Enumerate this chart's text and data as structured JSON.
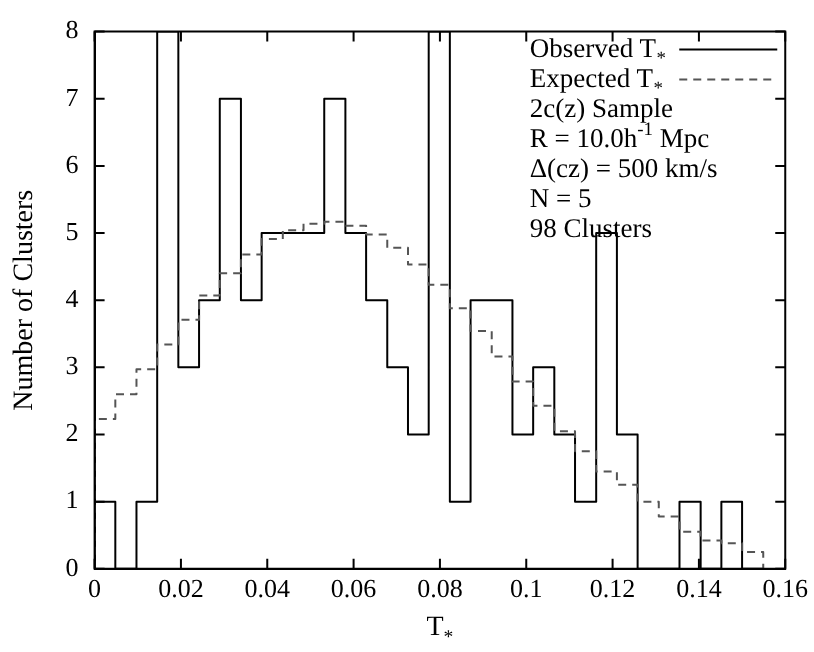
{
  "chart_data": {
    "type": "histogram",
    "xlabel": "T$_{*}$",
    "ylabel": "Number of Clusters",
    "bins": [
      0,
      0.0048,
      0.0097,
      0.0145,
      0.0194,
      0.0242,
      0.029,
      0.0339,
      0.0387,
      0.0436,
      0.0484,
      0.0532,
      0.0581,
      0.0629,
      0.0678,
      0.0726,
      0.0774,
      0.0823,
      0.0871,
      0.092,
      0.0968,
      0.1016,
      0.1065,
      0.1113,
      0.1162,
      0.121,
      0.1258,
      0.1307,
      0.1355,
      0.1404,
      0.1452,
      0.15,
      0.1549
    ],
    "series": [
      {
        "name": "Observed T$_{*}$",
        "color": "#000000",
        "line_style": "solid",
        "values": [
          1,
          0,
          1,
          8,
          3,
          4,
          7,
          4,
          5,
          5,
          5,
          7,
          5,
          4,
          3,
          2,
          8,
          1,
          4,
          4,
          2,
          3,
          2,
          1,
          5,
          2,
          0,
          0,
          1,
          0,
          1,
          0
        ]
      },
      {
        "name": "Expected T$_{*}$",
        "color": "#555555",
        "line_style": "dashed",
        "values": [
          2.23,
          2.6,
          2.97,
          3.34,
          3.71,
          4.07,
          4.4,
          4.68,
          4.91,
          5.04,
          5.14,
          5.17,
          5.11,
          4.98,
          4.78,
          4.53,
          4.23,
          3.88,
          3.54,
          3.16,
          2.79,
          2.43,
          2.05,
          1.75,
          1.45,
          1.25,
          1.0,
          0.78,
          0.55,
          0.42,
          0.38,
          0.25
        ]
      }
    ],
    "xlim": [
      0,
      0.16
    ],
    "xticks": [
      0,
      0.02,
      0.04,
      0.06,
      0.08,
      0.1,
      0.12,
      0.14,
      0.16
    ],
    "ylim": [
      0,
      8
    ],
    "yticks": [
      0,
      1,
      2,
      3,
      4,
      5,
      6,
      7,
      8
    ],
    "grid": false,
    "legend": "top right",
    "annotations": [
      "2c(z) Sample",
      "R = 10.0h$^{-1}$ Mpc",
      "Δ(cz) = 500 km/s",
      "N = 5",
      "98 Clusters"
    ]
  }
}
